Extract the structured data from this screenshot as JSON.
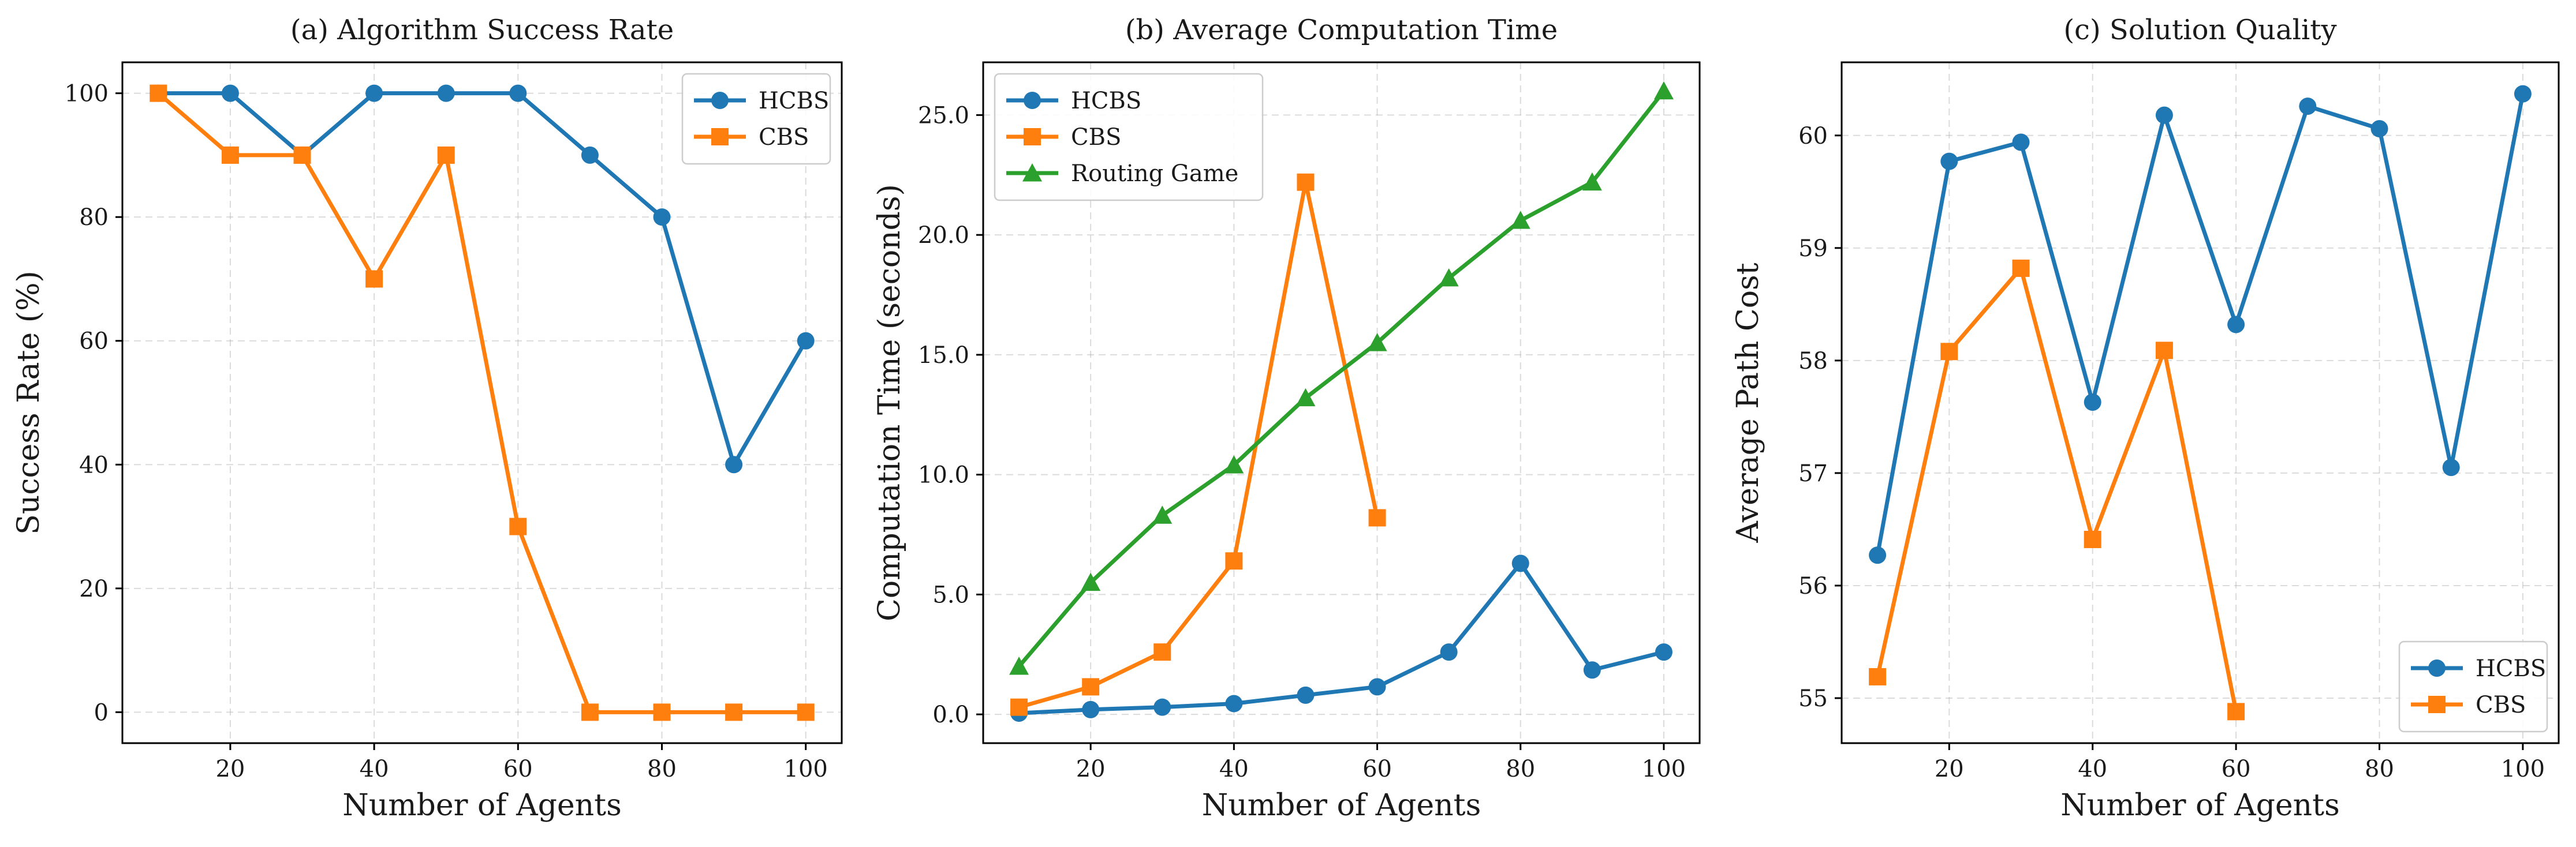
{
  "colors": {
    "hcbs": "#1f77b4",
    "cbs": "#ff7f0e",
    "routing_game": "#2ca02c"
  },
  "chart_data": [
    {
      "type": "line",
      "title": "(a) Algorithm Success Rate",
      "xlabel": "Number of Agents",
      "ylabel": "Success Rate (%)",
      "xlim": [
        5,
        105
      ],
      "ylim": [
        -5,
        105
      ],
      "xticks": [
        20,
        40,
        60,
        80,
        100
      ],
      "yticks": [
        0,
        20,
        40,
        60,
        80,
        100
      ],
      "ytick_labels": [
        "0",
        "20",
        "40",
        "60",
        "80",
        "100"
      ],
      "grid": true,
      "legend_position": "top-right",
      "series": [
        {
          "name": "HCBS",
          "color": "#1f77b4",
          "marker": "circle",
          "x": [
            10,
            20,
            30,
            40,
            50,
            60,
            70,
            80,
            90,
            100
          ],
          "y": [
            100,
            100,
            90,
            100,
            100,
            100,
            90,
            80,
            40,
            60
          ]
        },
        {
          "name": "CBS",
          "color": "#ff7f0e",
          "marker": "square",
          "x": [
            10,
            20,
            30,
            40,
            50,
            60,
            70,
            80,
            90,
            100
          ],
          "y": [
            100,
            90,
            90,
            70,
            90,
            30,
            0,
            0,
            0,
            0
          ]
        }
      ]
    },
    {
      "type": "line",
      "title": "(b) Average Computation Time",
      "xlabel": "Number of Agents",
      "ylabel": "Computation Time (seconds)",
      "xlim": [
        5,
        105
      ],
      "ylim": [
        -1.2,
        27.2
      ],
      "xticks": [
        20,
        40,
        60,
        80,
        100
      ],
      "yticks": [
        0,
        5,
        10,
        15,
        20,
        25
      ],
      "ytick_labels": [
        "0.0",
        "5.0",
        "10.0",
        "15.0",
        "20.0",
        "25.0"
      ],
      "grid": true,
      "legend_position": "top-left",
      "series": [
        {
          "name": "HCBS",
          "color": "#1f77b4",
          "marker": "circle",
          "x": [
            10,
            20,
            30,
            40,
            50,
            60,
            70,
            80,
            90,
            100
          ],
          "y": [
            0.05,
            0.2,
            0.3,
            0.45,
            0.8,
            1.15,
            2.6,
            6.3,
            1.85,
            2.6
          ]
        },
        {
          "name": "CBS",
          "color": "#ff7f0e",
          "marker": "square",
          "x": [
            10,
            20,
            30,
            40,
            50,
            60
          ],
          "y": [
            0.3,
            1.15,
            2.6,
            6.4,
            22.2,
            8.2
          ]
        },
        {
          "name": "Routing Game",
          "color": "#2ca02c",
          "marker": "triangle",
          "x": [
            10,
            20,
            30,
            40,
            50,
            60,
            70,
            80,
            90,
            100
          ],
          "y": [
            2.0,
            5.5,
            8.3,
            10.4,
            13.2,
            15.5,
            18.2,
            20.6,
            22.2,
            26.0
          ]
        }
      ]
    },
    {
      "type": "line",
      "title": "(c) Solution Quality",
      "xlabel": "Number of Agents",
      "ylabel": "Average Path Cost",
      "xlim": [
        5,
        105
      ],
      "ylim": [
        54.6,
        60.65
      ],
      "xticks": [
        20,
        40,
        60,
        80,
        100
      ],
      "yticks": [
        55,
        56,
        57,
        58,
        59,
        60
      ],
      "ytick_labels": [
        "55",
        "56",
        "57",
        "58",
        "59",
        "60"
      ],
      "grid": true,
      "legend_position": "bottom-right",
      "series": [
        {
          "name": "HCBS",
          "color": "#1f77b4",
          "marker": "circle",
          "x": [
            10,
            20,
            30,
            40,
            50,
            60,
            70,
            80,
            90,
            100
          ],
          "y": [
            56.27,
            59.77,
            59.94,
            57.63,
            60.18,
            58.32,
            60.26,
            60.06,
            57.05,
            60.37
          ]
        },
        {
          "name": "CBS",
          "color": "#ff7f0e",
          "marker": "square",
          "x": [
            10,
            20,
            30,
            40,
            50,
            60
          ],
          "y": [
            55.19,
            58.08,
            58.82,
            56.41,
            58.09,
            54.88
          ]
        }
      ]
    }
  ]
}
